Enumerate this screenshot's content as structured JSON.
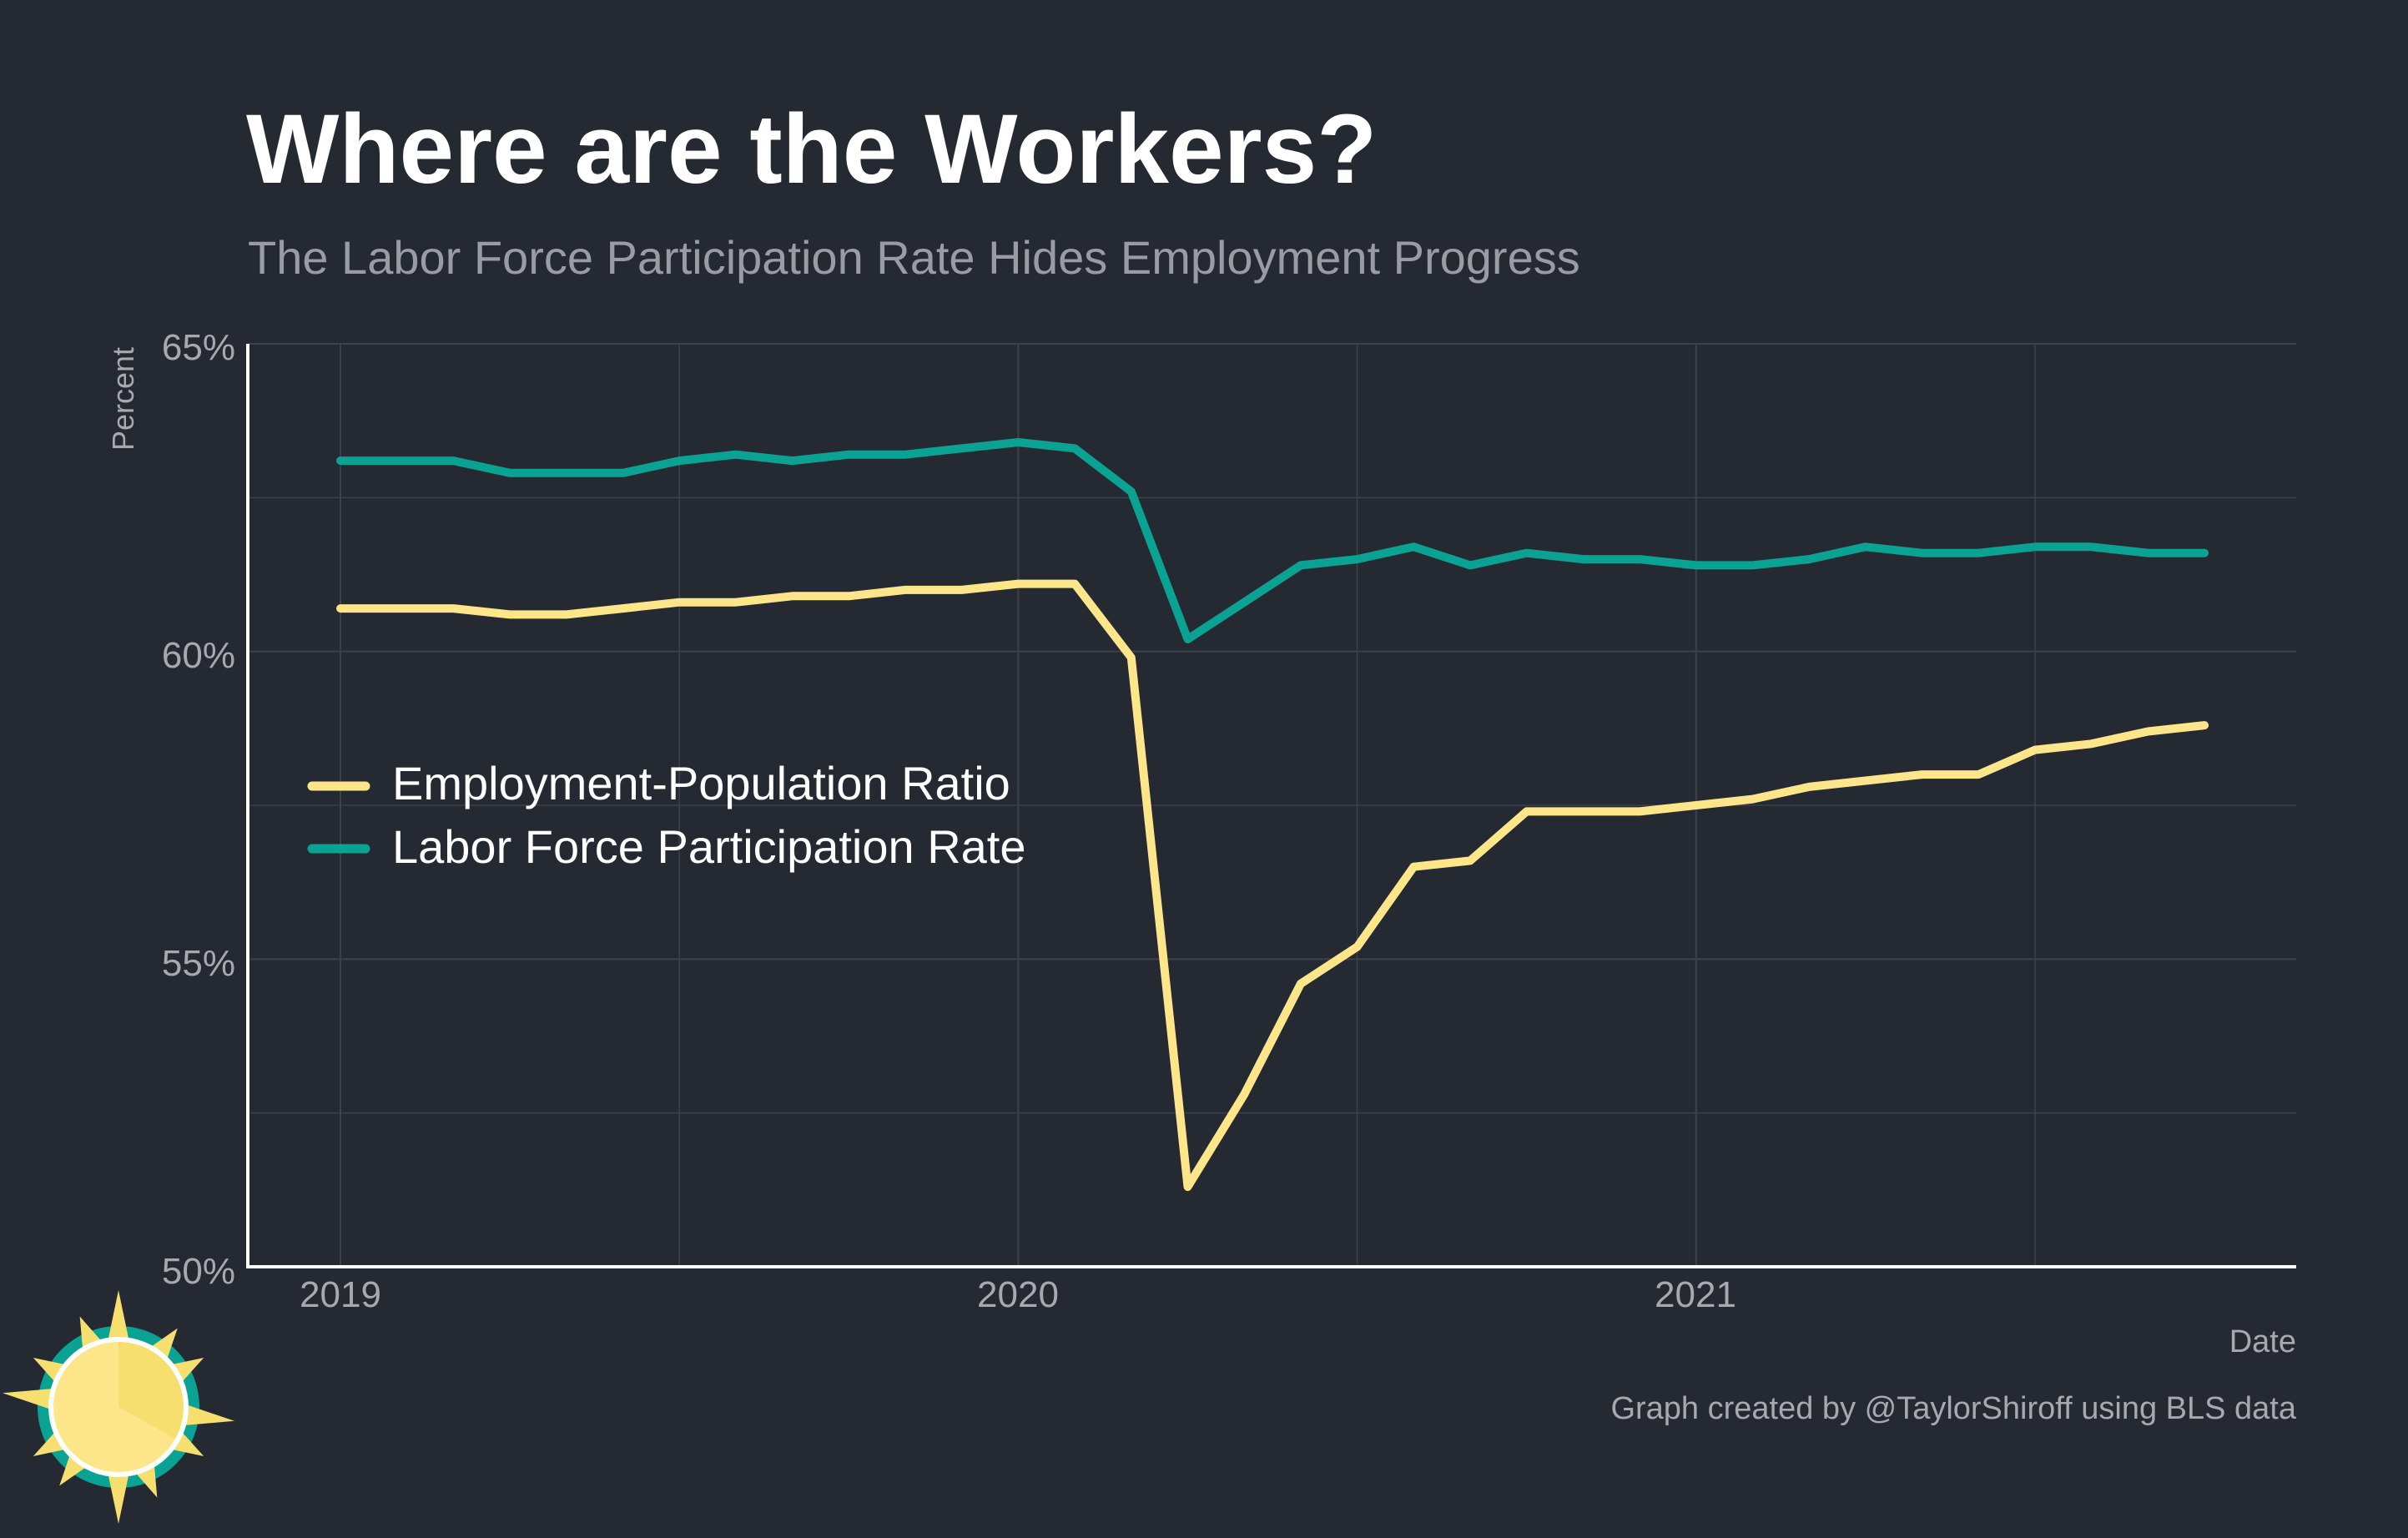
{
  "title": "Where are the Workers?",
  "subtitle": "The Labor Force Participation Rate Hides Employment Progress",
  "caption": "Graph created by @TaylorShiroff using BLS data",
  "colors": {
    "background": "#252932",
    "grid": "#3d414a",
    "axis": "#ffffff",
    "epop": "#fde68a",
    "lfpr": "#0aa393",
    "logo_sun": "#f6df6f",
    "logo_ring": "#0aa393"
  },
  "logo": {
    "icon": "sun-logo-icon"
  },
  "chart_data": {
    "type": "line",
    "xlabel": "Date",
    "ylabel": "Percent",
    "ylim": [
      50,
      65
    ],
    "yticks": [
      50,
      55,
      60,
      65
    ],
    "ytick_labels": [
      "50%",
      "55%",
      "60%",
      "65%"
    ],
    "xlim": [
      "2019-01",
      "2021-12"
    ],
    "xticks": [
      "2019-01",
      "2020-01",
      "2021-01"
    ],
    "xtick_labels": [
      "2019",
      "2020",
      "2021"
    ],
    "grid": true,
    "legend_position": "center-left",
    "x": [
      "2019-01",
      "2019-02",
      "2019-03",
      "2019-04",
      "2019-05",
      "2019-06",
      "2019-07",
      "2019-08",
      "2019-09",
      "2019-10",
      "2019-11",
      "2019-12",
      "2020-01",
      "2020-02",
      "2020-03",
      "2020-04",
      "2020-05",
      "2020-06",
      "2020-07",
      "2020-08",
      "2020-09",
      "2020-10",
      "2020-11",
      "2020-12",
      "2021-01",
      "2021-02",
      "2021-03",
      "2021-04",
      "2021-05",
      "2021-06",
      "2021-07",
      "2021-08",
      "2021-09",
      "2021-10"
    ],
    "series": [
      {
        "name": "Employment-Population Ratio",
        "color": "#fde68a",
        "values": [
          60.7,
          60.7,
          60.7,
          60.6,
          60.6,
          60.7,
          60.8,
          60.8,
          60.9,
          60.9,
          61.0,
          61.0,
          61.1,
          61.1,
          59.9,
          51.3,
          52.8,
          54.6,
          55.2,
          56.5,
          56.6,
          57.4,
          57.4,
          57.4,
          57.5,
          57.6,
          57.8,
          57.9,
          58.0,
          58.0,
          58.4,
          58.5,
          58.7,
          58.8
        ]
      },
      {
        "name": "Labor Force Participation Rate",
        "color": "#0aa393",
        "values": [
          63.1,
          63.1,
          63.1,
          62.9,
          62.9,
          62.9,
          63.1,
          63.2,
          63.1,
          63.2,
          63.2,
          63.3,
          63.4,
          63.3,
          62.6,
          60.2,
          60.8,
          61.4,
          61.5,
          61.7,
          61.4,
          61.6,
          61.5,
          61.5,
          61.4,
          61.4,
          61.5,
          61.7,
          61.6,
          61.6,
          61.7,
          61.7,
          61.6,
          61.6
        ]
      }
    ]
  }
}
